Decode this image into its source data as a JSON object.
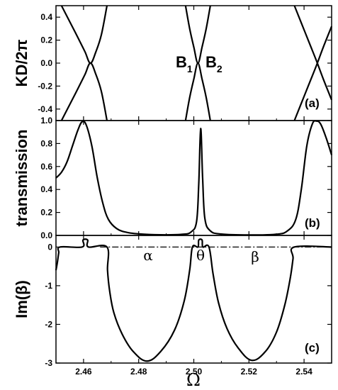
{
  "x_axis": {
    "label": "Ω",
    "ticks": [
      "2.46",
      "2.48",
      "2.50",
      "2.52",
      "2.54"
    ]
  },
  "panels": [
    {
      "id": "a",
      "ylabel": "KD/2π",
      "tag": "(a)",
      "yticks": [
        "0.4",
        "0.2",
        "0.0",
        "-0.2",
        "-0.4"
      ],
      "annotations": {
        "b1": "B",
        "b1_sub": "1",
        "b2": "B",
        "b2_sub": "2"
      }
    },
    {
      "id": "b",
      "ylabel": "transmission",
      "tag": "(b)",
      "yticks": [
        "1.0",
        "0.8",
        "0.6",
        "0.4",
        "0.2",
        "0.0"
      ]
    },
    {
      "id": "c",
      "ylabel": "Im(β)",
      "tag": "(c)",
      "yticks": [
        "0",
        "-1",
        "-2",
        "-3"
      ],
      "annotations": {
        "alpha": "α",
        "theta": "θ",
        "beta": "β"
      }
    }
  ],
  "chart_data": [
    {
      "panel": "a",
      "type": "line",
      "xlim": [
        2.45,
        2.55
      ],
      "ylim": [
        -0.5,
        0.5
      ],
      "xlabel": "Ω",
      "ylabel": "KD/2π",
      "series": [
        {
          "points": [
            [
              2.452,
              0.5
            ],
            [
              2.455,
              0.36
            ],
            [
              2.458,
              0.22
            ],
            [
              2.4605,
              0.1
            ],
            [
              2.4625,
              0.0
            ],
            [
              2.4645,
              0.1
            ],
            [
              2.4665,
              0.25
            ],
            [
              2.4685,
              0.5
            ]
          ]
        },
        {
          "points": [
            [
              2.452,
              -0.5
            ],
            [
              2.455,
              -0.36
            ],
            [
              2.458,
              -0.22
            ],
            [
              2.4605,
              -0.1
            ],
            [
              2.4625,
              0.0
            ],
            [
              2.4645,
              -0.1
            ],
            [
              2.4665,
              -0.25
            ],
            [
              2.4685,
              -0.5
            ]
          ]
        },
        {
          "points": [
            [
              2.497,
              0.5
            ],
            [
              2.4985,
              0.3
            ],
            [
              2.5,
              0.14
            ],
            [
              2.5015,
              0.0
            ],
            [
              2.503,
              0.14
            ],
            [
              2.5045,
              0.3
            ],
            [
              2.506,
              0.5
            ]
          ]
        },
        {
          "points": [
            [
              2.497,
              -0.5
            ],
            [
              2.4985,
              -0.3
            ],
            [
              2.5,
              -0.14
            ],
            [
              2.5015,
              0.0
            ],
            [
              2.503,
              -0.14
            ],
            [
              2.5045,
              -0.3
            ],
            [
              2.506,
              -0.5
            ]
          ]
        },
        {
          "points": [
            [
              2.5365,
              0.5
            ],
            [
              2.539,
              0.35
            ],
            [
              2.542,
              0.17
            ],
            [
              2.5445,
              0.02
            ],
            [
              2.547,
              -0.14
            ],
            [
              2.55,
              -0.32
            ]
          ]
        },
        {
          "points": [
            [
              2.5365,
              -0.5
            ],
            [
              2.539,
              -0.35
            ],
            [
              2.542,
              -0.17
            ],
            [
              2.5445,
              -0.02
            ],
            [
              2.547,
              0.14
            ],
            [
              2.55,
              0.32
            ]
          ]
        }
      ]
    },
    {
      "panel": "b",
      "type": "line",
      "xlim": [
        2.45,
        2.55
      ],
      "ylim": [
        0,
        1.0
      ],
      "xlabel": "Ω",
      "ylabel": "transmission",
      "series": [
        {
          "points": [
            [
              2.45,
              0.5
            ],
            [
              2.452,
              0.55
            ],
            [
              2.454,
              0.64
            ],
            [
              2.456,
              0.78
            ],
            [
              2.458,
              0.92
            ],
            [
              2.4595,
              0.99
            ],
            [
              2.461,
              0.96
            ],
            [
              2.463,
              0.78
            ],
            [
              2.465,
              0.5
            ],
            [
              2.467,
              0.28
            ],
            [
              2.469,
              0.14
            ],
            [
              2.472,
              0.06
            ],
            [
              2.476,
              0.025
            ],
            [
              2.482,
              0.01
            ],
            [
              2.49,
              0.005
            ],
            [
              2.496,
              0.01
            ],
            [
              2.499,
              0.03
            ],
            [
              2.501,
              0.12
            ],
            [
              2.5018,
              0.45
            ],
            [
              2.5025,
              0.93
            ],
            [
              2.5032,
              0.5
            ],
            [
              2.504,
              0.15
            ],
            [
              2.506,
              0.04
            ],
            [
              2.51,
              0.012
            ],
            [
              2.52,
              0.004
            ],
            [
              2.53,
              0.01
            ],
            [
              2.534,
              0.04
            ],
            [
              2.537,
              0.14
            ],
            [
              2.539,
              0.4
            ],
            [
              2.541,
              0.78
            ],
            [
              2.543,
              0.97
            ],
            [
              2.5445,
              0.995
            ],
            [
              2.546,
              0.97
            ],
            [
              2.548,
              0.85
            ],
            [
              2.55,
              0.7
            ]
          ]
        }
      ]
    },
    {
      "panel": "c",
      "type": "line",
      "xlim": [
        2.45,
        2.55
      ],
      "ylim": [
        -3.0,
        0.3
      ],
      "xlabel": "Ω",
      "ylabel": "Im(β)",
      "series": [
        {
          "points": [
            [
              2.45,
              -0.6
            ],
            [
              2.4505,
              -0.4
            ],
            [
              2.451,
              -0.15
            ],
            [
              2.4515,
              0.0
            ],
            [
              2.4595,
              0.0
            ],
            [
              2.4598,
              0.18
            ],
            [
              2.4615,
              0.18
            ],
            [
              2.4618,
              0.0
            ],
            [
              2.4685,
              0.0
            ],
            [
              2.4687,
              -0.6
            ],
            [
              2.4695,
              -1.15
            ],
            [
              2.471,
              -1.7
            ],
            [
              2.474,
              -2.25
            ],
            [
              2.478,
              -2.7
            ],
            [
              2.483,
              -2.95
            ],
            [
              2.488,
              -2.7
            ],
            [
              2.493,
              -2.15
            ],
            [
              2.4965,
              -1.4
            ],
            [
              2.4985,
              -0.6
            ],
            [
              2.4995,
              0.0
            ],
            [
              2.5015,
              0.0
            ],
            [
              2.5018,
              0.18
            ],
            [
              2.503,
              0.18
            ],
            [
              2.5033,
              0.0
            ],
            [
              2.5055,
              0.0
            ],
            [
              2.507,
              -0.7
            ],
            [
              2.509,
              -1.45
            ],
            [
              2.512,
              -2.1
            ],
            [
              2.516,
              -2.6
            ],
            [
              2.521,
              -2.93
            ],
            [
              2.526,
              -2.7
            ],
            [
              2.53,
              -2.2
            ],
            [
              2.533,
              -1.5
            ],
            [
              2.535,
              -0.8
            ],
            [
              2.536,
              -0.3
            ],
            [
              2.5365,
              0.0
            ],
            [
              2.55,
              0.0
            ]
          ]
        }
      ],
      "reference_line": {
        "style": "dash-dot",
        "y": 0.0,
        "x_range": [
          2.466,
          2.55
        ]
      }
    }
  ]
}
